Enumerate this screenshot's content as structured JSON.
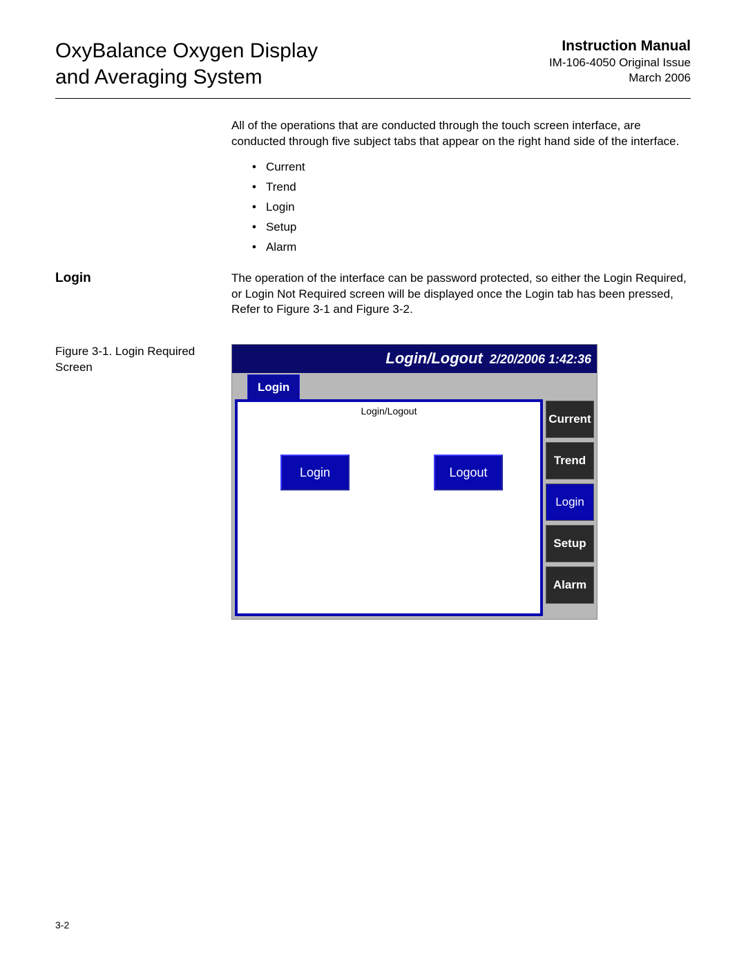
{
  "header": {
    "title_line1": "OxyBalance Oxygen Display",
    "title_line2": "and Averaging System",
    "manual_title": "Instruction Manual",
    "doc_id": "IM-106-4050 Original Issue",
    "doc_date": "March 2006"
  },
  "intro_text": "All of the operations that are conducted through the touch screen interface, are conducted through five subject tabs that appear on the right hand side of the interface.",
  "bullets": [
    "Current",
    "Trend",
    "Login",
    "Setup",
    "Alarm"
  ],
  "section": {
    "heading": "Login",
    "text": "The operation of the interface can be password protected, so either the Login Required, or Login Not Required screen will be displayed once the Login tab has been pressed, Refer to Figure 3-1 and Figure 3-2."
  },
  "figure_caption": "Figure 3-1. Login Required Screen",
  "screen": {
    "titlebar_title": "Login/Logout",
    "titlebar_datetime": "2/20/2006 1:42:36",
    "active_tab": "Login",
    "panel_title": "Login/Logout",
    "login_btn": "Login",
    "logout_btn": "Logout",
    "tabs": {
      "current": "Current",
      "trend": "Trend",
      "login": "Login",
      "setup": "Setup",
      "alarm": "Alarm"
    },
    "colors": {
      "titlebar_bg": "#0a0a6b",
      "tab_active_bg": "#0a0a9e",
      "panel_border": "#0808b0",
      "button_bg": "#0808b0",
      "sidetab_bg": "#2a2a2a",
      "sidetab_login_bg": "#0808b0",
      "screen_bg": "#b8b8b8",
      "text_white": "#ffffff"
    }
  },
  "page_number": "3-2"
}
